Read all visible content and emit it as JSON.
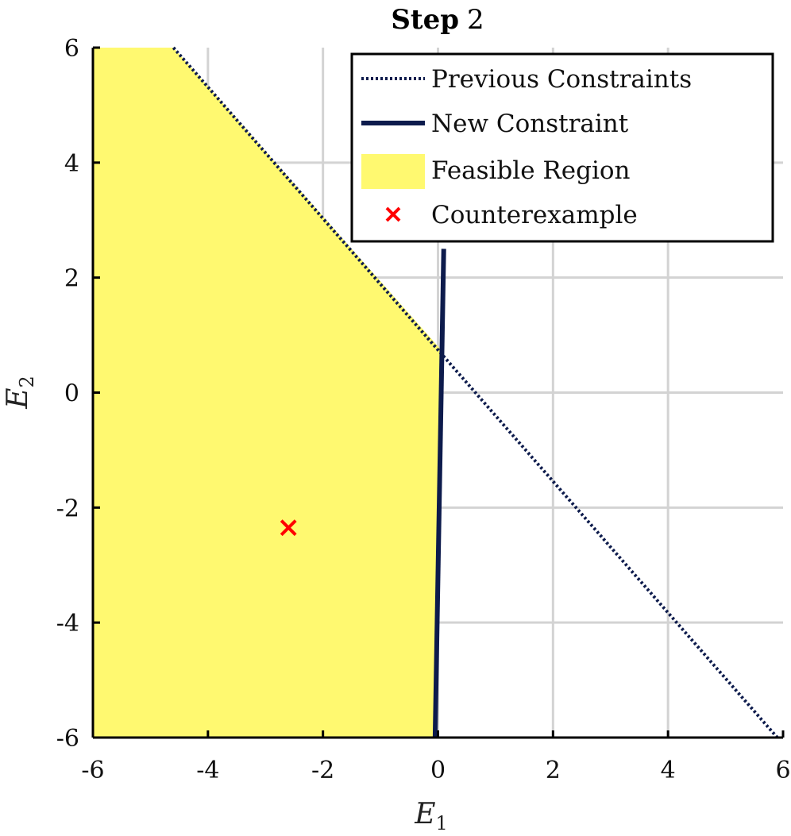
{
  "chart_data": {
    "type": "line",
    "title": "Step 2",
    "title_bold": "Step",
    "title_rest": "2",
    "xlabel": "E",
    "xlabel_sub": "1",
    "ylabel": "E",
    "ylabel_sub": "2",
    "xlim": [
      -6,
      6
    ],
    "ylim": [
      -6,
      6
    ],
    "xticks": [
      -6,
      -4,
      -2,
      0,
      2,
      4,
      6
    ],
    "yticks": [
      -6,
      -4,
      -2,
      0,
      2,
      4,
      6
    ],
    "grid": true,
    "legend_position": "top-right",
    "series": [
      {
        "name": "Previous Constraints",
        "style": "dotted",
        "color": "#0d1b4c",
        "x": [
          -4.6,
          5.9
        ],
        "y": [
          6,
          -6
        ]
      },
      {
        "name": "New Constraint",
        "style": "solid",
        "color": "#0d1b4c",
        "x": [
          -0.05,
          0.1
        ],
        "y": [
          -6,
          2.5
        ]
      },
      {
        "name": "Feasible Region",
        "style": "fill",
        "color": "#fff970",
        "x": [
          -6,
          -4.6,
          0.05,
          -0.05,
          -6
        ],
        "y": [
          6,
          6,
          0.75,
          -6,
          -6
        ]
      },
      {
        "name": "Counterexample",
        "style": "marker",
        "color": "#ff0000",
        "x": [
          -2.6
        ],
        "y": [
          -2.35
        ]
      }
    ]
  }
}
